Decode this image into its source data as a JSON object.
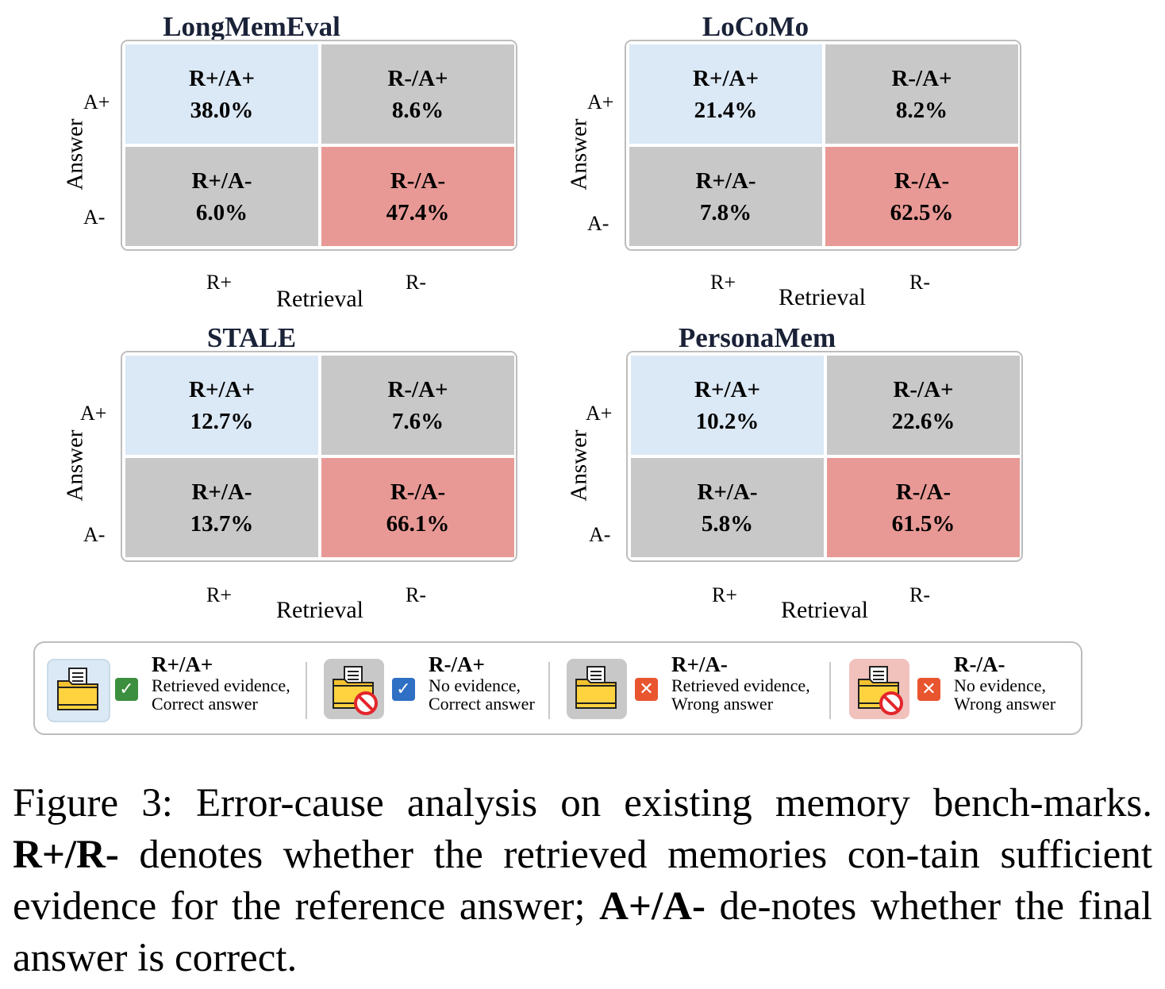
{
  "chart_data": [
    {
      "type": "heatmap",
      "title": "LongMemEval",
      "xlabel": "Retrieval",
      "ylabel": "Answer",
      "x_ticks": [
        "R+",
        "R-"
      ],
      "y_ticks": [
        "A+",
        "A-"
      ],
      "cells": [
        [
          {
            "label": "R+/A+",
            "value": "38.0%"
          },
          {
            "label": "R-/A+",
            "value": "8.6%"
          }
        ],
        [
          {
            "label": "R+/A-",
            "value": "6.0%"
          },
          {
            "label": "R-/A-",
            "value": "47.4%"
          }
        ]
      ]
    },
    {
      "type": "heatmap",
      "title": "LoCoMo",
      "xlabel": "Retrieval",
      "ylabel": "Answer",
      "x_ticks": [
        "R+",
        "R-"
      ],
      "y_ticks": [
        "A+",
        "A-"
      ],
      "cells": [
        [
          {
            "label": "R+/A+",
            "value": "21.4%"
          },
          {
            "label": "R-/A+",
            "value": "8.2%"
          }
        ],
        [
          {
            "label": "R+/A-",
            "value": "7.8%"
          },
          {
            "label": "R-/A-",
            "value": "62.5%"
          }
        ]
      ]
    },
    {
      "type": "heatmap",
      "title": "STALE",
      "xlabel": "Retrieval",
      "ylabel": "Answer",
      "x_ticks": [
        "R+",
        "R-"
      ],
      "y_ticks": [
        "A+",
        "A-"
      ],
      "cells": [
        [
          {
            "label": "R+/A+",
            "value": "12.7%"
          },
          {
            "label": "R-/A+",
            "value": "7.6%"
          }
        ],
        [
          {
            "label": "R+/A-",
            "value": "13.7%"
          },
          {
            "label": "R-/A-",
            "value": "66.1%"
          }
        ]
      ]
    },
    {
      "type": "heatmap",
      "title": "PersonaMem",
      "xlabel": "Retrieval",
      "ylabel": "Answer",
      "x_ticks": [
        "R+",
        "R-"
      ],
      "y_ticks": [
        "A+",
        "A-"
      ],
      "cells": [
        [
          {
            "label": "R+/A+",
            "value": "10.2%"
          },
          {
            "label": "R-/A+",
            "value": "22.6%"
          }
        ],
        [
          {
            "label": "R+/A-",
            "value": "5.8%"
          },
          {
            "label": "R-/A-",
            "value": "61.5%"
          }
        ]
      ]
    }
  ],
  "cell_colors": {
    "correct_with_evidence": "#dbe8f5",
    "neutral": "#c9c8c8",
    "wrong_without_evidence": "#e89995"
  },
  "legend": [
    {
      "code": "R+/A+",
      "line1": "Retrieved evidence,",
      "line2": "Correct answer",
      "icon": "folder-icon",
      "mark": "check",
      "mark_color": "#3b8f3e",
      "box_color": "#dbe8f5"
    },
    {
      "code": "R-/A+",
      "line1": "No evidence,",
      "line2": "Correct answer",
      "icon": "folder-prohibited-icon",
      "mark": "check",
      "mark_color": "#2f6fc4",
      "box_color": "#c9c8c8"
    },
    {
      "code": "R+/A-",
      "line1": "Retrieved evidence,",
      "line2": "Wrong answer",
      "icon": "folder-icon",
      "mark": "cross",
      "mark_color": "#e8552f",
      "box_color": "#c9c8c8"
    },
    {
      "code": "R-/A-",
      "line1": "No evidence,",
      "line2": "Wrong answer",
      "icon": "folder-prohibited-icon",
      "mark": "cross",
      "mark_color": "#e8552f",
      "box_color": "#f1c1bc"
    }
  ],
  "caption": {
    "prefix": "Figure 3: Error-cause analysis on existing memory bench-marks. ",
    "bold1": "R+/R-",
    "mid": " denotes whether the retrieved memories con-tain sufficient evidence for the reference answer; ",
    "bold2": "A+/A-",
    "suffix": " de-notes whether the final answer is correct."
  }
}
